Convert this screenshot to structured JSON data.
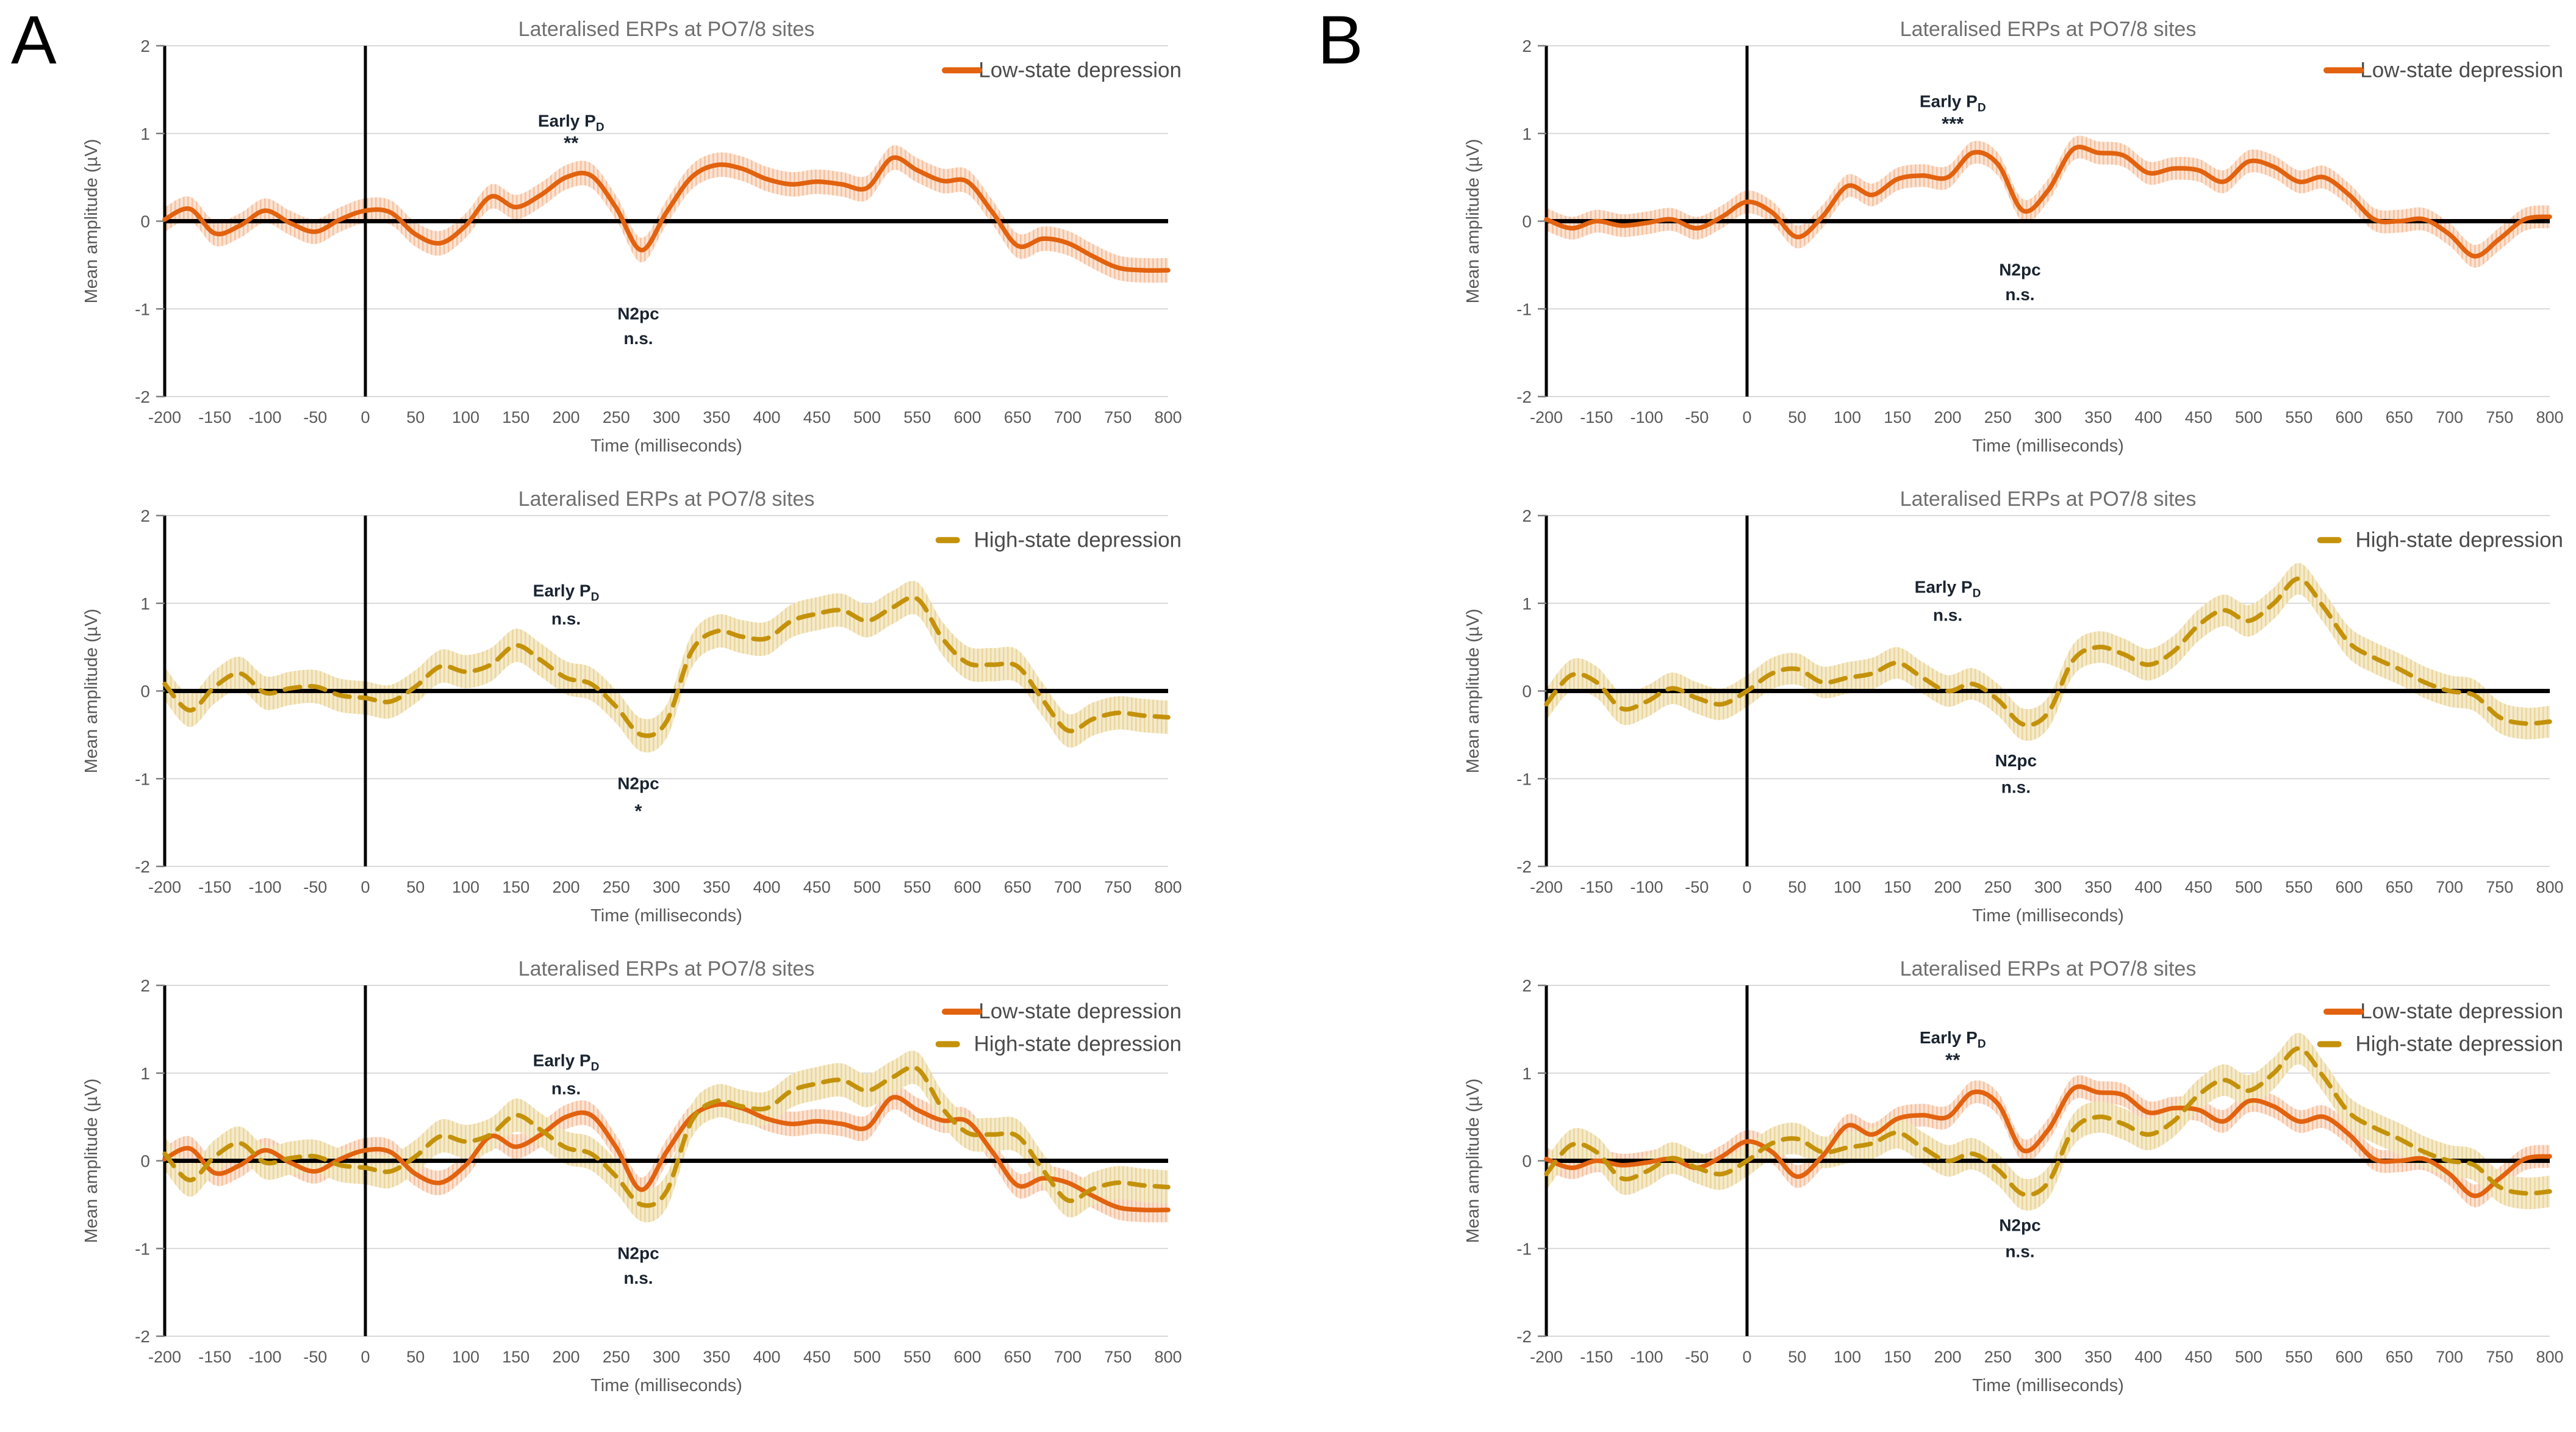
{
  "figure": {
    "panels": [
      {
        "letter": "A"
      },
      {
        "letter": "B"
      }
    ]
  },
  "styles": {
    "low_color": "#E2620F",
    "low_band": "#FBE3D3",
    "low_band_stripe": "#F5C2A0",
    "high_color": "#C4920A",
    "high_band": "#F5EACB",
    "high_band_stripe": "#EAD79E",
    "title_color": "#6F6F6F",
    "tick_color": "#595959",
    "axis_label_color": "#595959",
    "legend_color": "#4A4A4A",
    "annotation_color": "#1A2430",
    "grid_color": "#D9D9D9",
    "axis_line_color": "#000000"
  },
  "chart_data": {
    "type": "line",
    "title": "Lateralised ERPs at PO7/8 sites",
    "xlabel": "Time (milliseconds)",
    "ylabel": "Mean amplitude (µV)",
    "xlim": [
      -200,
      800
    ],
    "ylim": [
      -2,
      2
    ],
    "x_tick_step": 50,
    "y_ticks": [
      2,
      1,
      0,
      -1,
      -2
    ],
    "grid": "horizontal-only",
    "stimulus_onset_line_x": 0,
    "x": [
      -200,
      -175,
      -150,
      -125,
      -100,
      -75,
      -50,
      -25,
      0,
      25,
      50,
      75,
      100,
      125,
      150,
      175,
      200,
      225,
      250,
      275,
      300,
      325,
      350,
      375,
      400,
      425,
      450,
      475,
      500,
      525,
      550,
      575,
      600,
      625,
      650,
      675,
      700,
      725,
      750,
      775,
      800
    ],
    "series_values": {
      "low_A": [
        0.02,
        0.14,
        -0.14,
        -0.05,
        0.12,
        -0.02,
        -0.12,
        0.02,
        0.12,
        0.1,
        -0.15,
        -0.25,
        -0.05,
        0.28,
        0.16,
        0.3,
        0.5,
        0.52,
        0.15,
        -0.33,
        0.1,
        0.5,
        0.64,
        0.6,
        0.48,
        0.42,
        0.45,
        0.42,
        0.38,
        0.72,
        0.58,
        0.46,
        0.45,
        0.1,
        -0.28,
        -0.2,
        -0.25,
        -0.4,
        -0.53,
        -0.56,
        -0.56
      ],
      "high_A": [
        0.08,
        -0.22,
        0.05,
        0.2,
        -0.02,
        0.03,
        0.05,
        -0.05,
        -0.08,
        -0.12,
        0.05,
        0.28,
        0.22,
        0.3,
        0.52,
        0.35,
        0.15,
        0.08,
        -0.18,
        -0.5,
        -0.35,
        0.45,
        0.68,
        0.62,
        0.6,
        0.8,
        0.88,
        0.92,
        0.8,
        0.95,
        1.05,
        0.6,
        0.32,
        0.3,
        0.28,
        -0.1,
        -0.45,
        -0.32,
        -0.25,
        -0.28,
        -0.3
      ],
      "low_B": [
        0.02,
        -0.08,
        0.0,
        -0.05,
        -0.02,
        0.02,
        -0.08,
        0.05,
        0.22,
        0.1,
        -0.18,
        0.05,
        0.4,
        0.3,
        0.48,
        0.52,
        0.5,
        0.78,
        0.65,
        0.12,
        0.35,
        0.82,
        0.78,
        0.75,
        0.55,
        0.6,
        0.58,
        0.45,
        0.68,
        0.62,
        0.45,
        0.5,
        0.3,
        0.02,
        0.0,
        0.02,
        -0.15,
        -0.4,
        -0.2,
        0.02,
        0.05
      ],
      "high_B": [
        -0.15,
        0.18,
        0.1,
        -0.2,
        -0.12,
        0.03,
        -0.08,
        -0.15,
        0.0,
        0.2,
        0.25,
        0.1,
        0.15,
        0.2,
        0.32,
        0.15,
        0.0,
        0.08,
        -0.1,
        -0.38,
        -0.25,
        0.35,
        0.5,
        0.42,
        0.3,
        0.45,
        0.75,
        0.92,
        0.8,
        1.0,
        1.28,
        0.95,
        0.55,
        0.38,
        0.25,
        0.1,
        0.0,
        -0.05,
        -0.3,
        -0.37,
        -0.35
      ]
    },
    "band_halfwidth": {
      "low_A": 0.14,
      "high_A": 0.19,
      "low_B": 0.13,
      "high_B": 0.18
    },
    "series_labels": {
      "low": "Low-state depression",
      "high": "High-state depression"
    },
    "panels": [
      {
        "id": "A1",
        "title": "Lateralised ERPs at PO7/8 sites",
        "series": [
          {
            "key": "low_A",
            "role": "low",
            "name": "Low-state depression",
            "style": "solid"
          }
        ],
        "legend": [
          {
            "label": "Low-state depression",
            "role": "low",
            "style": "solid"
          }
        ],
        "legend_y": [
          1.72
        ],
        "annotations": [
          {
            "text": "Early P",
            "sub": "D",
            "x": 205,
            "y": 1.08,
            "kind": "label"
          },
          {
            "text": "**",
            "x": 205,
            "y": 0.82,
            "kind": "stars"
          },
          {
            "text": "N2pc",
            "x": 272,
            "y": -1.12,
            "kind": "label"
          },
          {
            "text": "n.s.",
            "x": 272,
            "y": -1.4,
            "kind": "label"
          }
        ]
      },
      {
        "id": "A2",
        "title": "Lateralised ERPs at PO7/8 sites",
        "series": [
          {
            "key": "high_A",
            "role": "high",
            "name": "High-state depression",
            "style": "dashed"
          }
        ],
        "legend": [
          {
            "label": "High-state depression",
            "role": "high",
            "style": "dashed"
          }
        ],
        "legend_y": [
          1.72
        ],
        "annotations": [
          {
            "text": "Early P",
            "sub": "D",
            "x": 200,
            "y": 1.08,
            "kind": "label"
          },
          {
            "text": "n.s.",
            "x": 200,
            "y": 0.76,
            "kind": "label"
          },
          {
            "text": "N2pc",
            "x": 272,
            "y": -1.12,
            "kind": "label"
          },
          {
            "text": "*",
            "x": 272,
            "y": -1.44,
            "kind": "stars"
          }
        ]
      },
      {
        "id": "A3",
        "title": "Lateralised ERPs at PO7/8 sites",
        "series": [
          {
            "key": "low_A",
            "role": "low",
            "name": "Low-state depression",
            "style": "solid"
          },
          {
            "key": "high_A",
            "role": "high",
            "name": "High-state depression",
            "style": "dashed"
          }
        ],
        "legend": [
          {
            "label": "Low-state depression",
            "role": "low",
            "style": "solid"
          },
          {
            "label": "High-state depression",
            "role": "high",
            "style": "dashed"
          }
        ],
        "legend_y": [
          1.7,
          1.33
        ],
        "annotations": [
          {
            "text": "Early P",
            "sub": "D",
            "x": 200,
            "y": 1.08,
            "kind": "label"
          },
          {
            "text": "n.s.",
            "x": 200,
            "y": 0.76,
            "kind": "label"
          },
          {
            "text": "N2pc",
            "x": 272,
            "y": -1.12,
            "kind": "label"
          },
          {
            "text": "n.s.",
            "x": 272,
            "y": -1.4,
            "kind": "label"
          }
        ]
      },
      {
        "id": "B1",
        "title": "Lateralised ERPs at PO7/8 sites",
        "series": [
          {
            "key": "low_B",
            "role": "low",
            "name": "Low-state depression",
            "style": "solid"
          }
        ],
        "legend": [
          {
            "label": "Low-state depression",
            "role": "low",
            "style": "solid"
          }
        ],
        "legend_y": [
          1.72
        ],
        "annotations": [
          {
            "text": "Early P",
            "sub": "D",
            "x": 205,
            "y": 1.3,
            "kind": "label"
          },
          {
            "text": "***",
            "x": 205,
            "y": 1.04,
            "kind": "stars"
          },
          {
            "text": "N2pc",
            "x": 272,
            "y": -0.62,
            "kind": "label"
          },
          {
            "text": "n.s.",
            "x": 272,
            "y": -0.9,
            "kind": "label"
          }
        ]
      },
      {
        "id": "B2",
        "title": "Lateralised ERPs at PO7/8 sites",
        "series": [
          {
            "key": "high_B",
            "role": "high",
            "name": "High-state depression",
            "style": "dashed"
          }
        ],
        "legend": [
          {
            "label": "High-state depression",
            "role": "high",
            "style": "dashed"
          }
        ],
        "legend_y": [
          1.72
        ],
        "annotations": [
          {
            "text": "Early P",
            "sub": "D",
            "x": 200,
            "y": 1.12,
            "kind": "label"
          },
          {
            "text": "n.s.",
            "x": 200,
            "y": 0.8,
            "kind": "label"
          },
          {
            "text": "N2pc",
            "x": 268,
            "y": -0.86,
            "kind": "label"
          },
          {
            "text": "n.s.",
            "x": 268,
            "y": -1.16,
            "kind": "label"
          }
        ]
      },
      {
        "id": "B3",
        "title": "Lateralised ERPs at PO7/8 sites",
        "series": [
          {
            "key": "low_B",
            "role": "low",
            "name": "Low-state depression",
            "style": "solid"
          },
          {
            "key": "high_B",
            "role": "high",
            "name": "High-state depression",
            "style": "dashed"
          }
        ],
        "legend": [
          {
            "label": "Low-state depression",
            "role": "low",
            "style": "solid"
          },
          {
            "label": "High-state depression",
            "role": "high",
            "style": "dashed"
          }
        ],
        "legend_y": [
          1.7,
          1.33
        ],
        "annotations": [
          {
            "text": "Early P",
            "sub": "D",
            "x": 205,
            "y": 1.34,
            "kind": "label"
          },
          {
            "text": "**",
            "x": 205,
            "y": 1.08,
            "kind": "stars"
          },
          {
            "text": "N2pc",
            "x": 272,
            "y": -0.8,
            "kind": "label"
          },
          {
            "text": "n.s.",
            "x": 272,
            "y": -1.1,
            "kind": "label"
          }
        ]
      }
    ]
  }
}
